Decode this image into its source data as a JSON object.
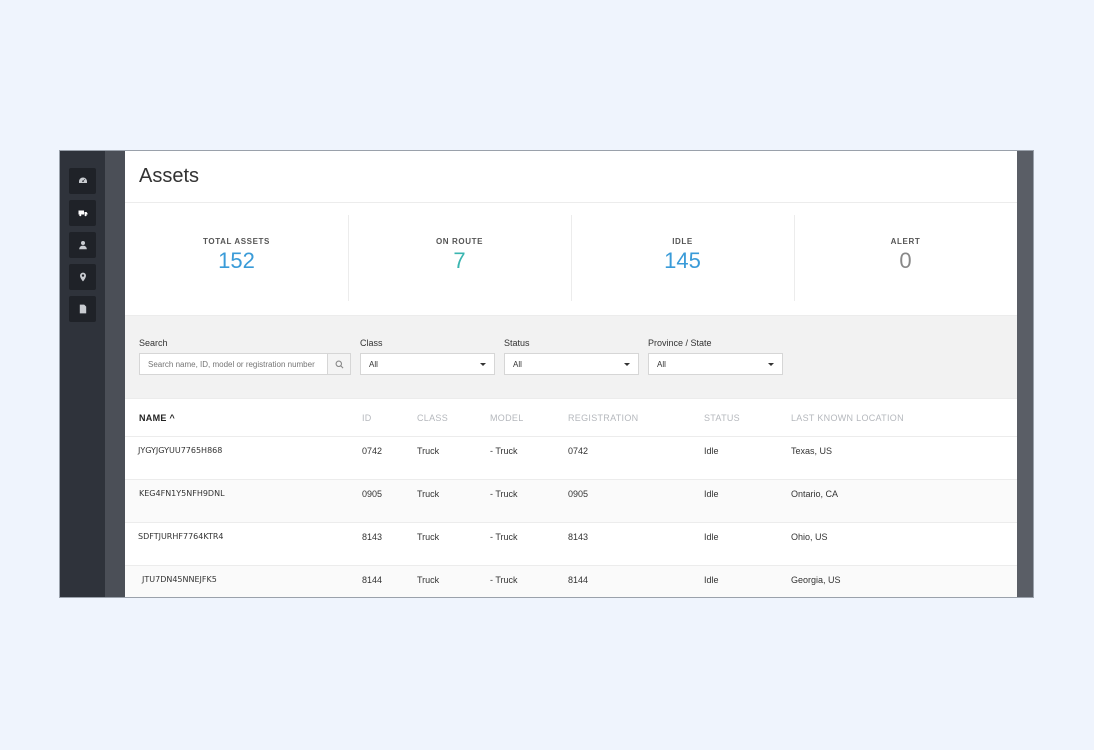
{
  "sidebar": {
    "items": [
      {
        "icon": "dashboard-icon",
        "active": false
      },
      {
        "icon": "truck-icon",
        "active": true
      },
      {
        "icon": "user-icon",
        "active": false
      },
      {
        "icon": "map-pin-icon",
        "active": false
      },
      {
        "icon": "document-icon",
        "active": false
      }
    ]
  },
  "page": {
    "title": "Assets"
  },
  "stats": [
    {
      "label": "TOTAL ASSETS",
      "value": "152",
      "color": "#3a9bd8"
    },
    {
      "label": "ON ROUTE",
      "value": "7",
      "color": "#3ab5b0"
    },
    {
      "label": "IDLE",
      "value": "145",
      "color": "#3a9bd8"
    },
    {
      "label": "ALERT",
      "value": "0",
      "color": "#888888"
    }
  ],
  "filters": {
    "search": {
      "label": "Search",
      "placeholder": "Search name, ID, model or registration number"
    },
    "class": {
      "label": "Class",
      "value": "All"
    },
    "status": {
      "label": "Status",
      "value": "All"
    },
    "province": {
      "label": "Province / State",
      "value": "All"
    }
  },
  "table": {
    "columns": {
      "name": "NAME",
      "id": "ID",
      "class": "CLASS",
      "model": "MODEL",
      "registration": "REGISTRATION",
      "status": "STATUS",
      "location": "LAST KNOWN LOCATION"
    },
    "sort_indicator": "^",
    "rows": [
      {
        "name": "JYGYJGYUU7765H868",
        "id": "0742",
        "class": "Truck",
        "model": "- Truck",
        "registration": "0742",
        "status": "Idle",
        "location": "Texas, US"
      },
      {
        "name": "KEG4FN1Y5NFH9DNL",
        "id": "0905",
        "class": "Truck",
        "model": "- Truck",
        "registration": "0905",
        "status": "Idle",
        "location": "Ontario, CA"
      },
      {
        "name": "SDFTJURHF7764KTR4",
        "id": "8143",
        "class": "Truck",
        "model": "- Truck",
        "registration": "8143",
        "status": "Idle",
        "location": "Ohio, US"
      },
      {
        "name": "JTU7DN45NNEJFK5",
        "id": "8144",
        "class": "Truck",
        "model": "- Truck",
        "registration": "8144",
        "status": "Idle",
        "location": "Georgia, US"
      }
    ]
  }
}
